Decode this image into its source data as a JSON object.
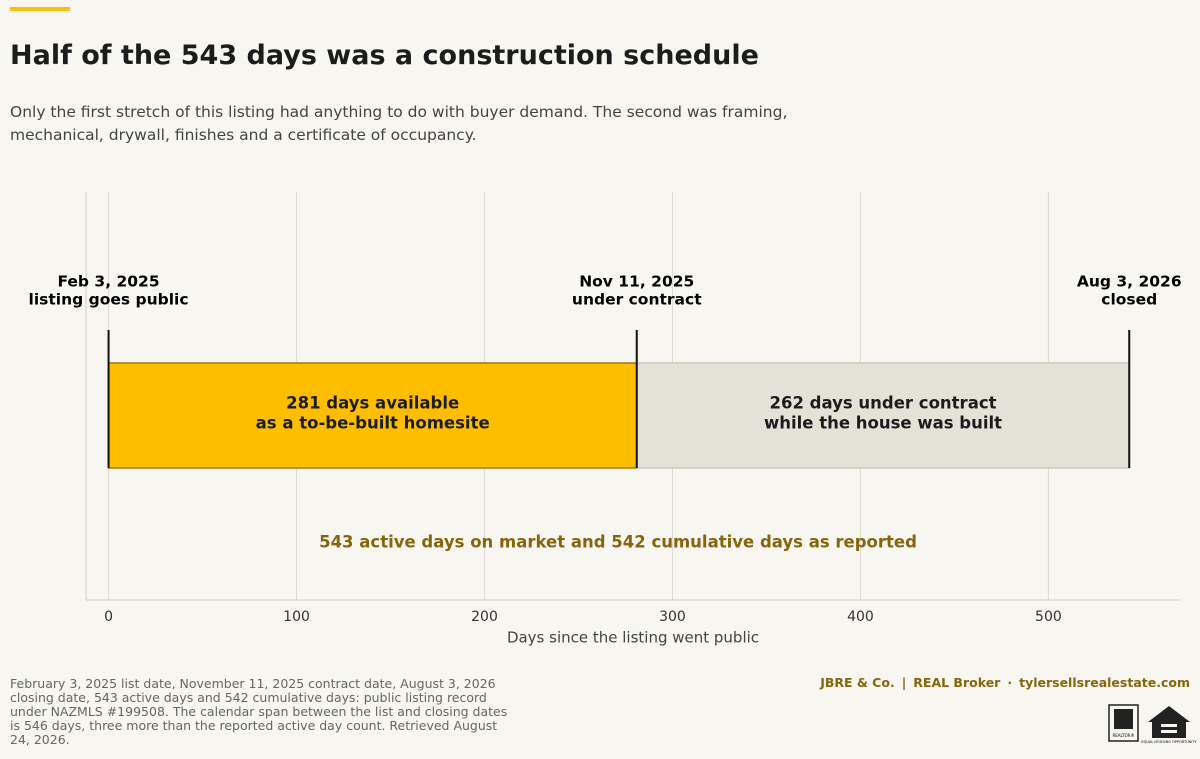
{
  "chart_data": {
    "type": "timeline",
    "title": "Half of the 543 days was a construction schedule",
    "subtitle": [
      "Only the first stretch of this listing had anything to do with buyer demand. The second was framing,",
      "mechanical, drywall, finishes and a certificate of occupancy."
    ],
    "series": [
      {
        "label": [
          "281 days available",
          "as a to-be-built homesite"
        ],
        "color": "#fdbd00",
        "stroke": "#a07a00",
        "values": [
          281
        ]
      },
      {
        "label": [
          "262 days under contract",
          "while the house was built"
        ],
        "color": "#e4e2d6",
        "stroke": "#cbc9bd",
        "values": [
          262
        ]
      }
    ],
    "markers": [
      {
        "x": 0,
        "date": "Feb 3, 2025",
        "label": "listing goes public"
      },
      {
        "x": 281,
        "date": "Nov 11, 2025",
        "label": "under contract"
      },
      {
        "x": 543,
        "date": "Aug 3, 2026",
        "label": "closed"
      }
    ],
    "annotation": "543 active days on market and 542 cumulative days as reported",
    "xlabel": "Days since the listing went public",
    "xlim": [
      -12,
      570
    ],
    "xticks": [
      0,
      100,
      200,
      300,
      400,
      500
    ],
    "grid": true,
    "footnote": "February 3, 2025 list date, November 11, 2025 contract date, August 3, 2026 closing date, 543 active days and 542 cumulative days: public listing record under NAZMLS #199508. The calendar span between the list and closing dates is 546 days, three more than the reported active day count. Retrieved August 24, 2026.",
    "brand": [
      "JBRE & Co.",
      "|",
      "REAL Broker",
      "·",
      "tylersellsrealestate.com"
    ],
    "logos": [
      "REALTOR®",
      "EQUAL HOUSING OPPORTUNITY"
    ]
  }
}
